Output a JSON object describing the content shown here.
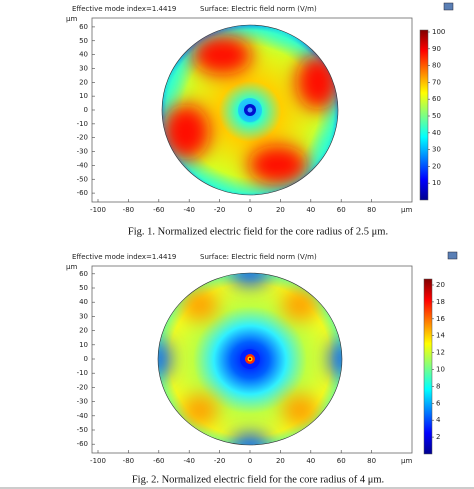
{
  "figures": [
    {
      "header": {
        "mode_index": "Effective mode index=1.4419",
        "surface": "Surface: Electric field norm (V/m)"
      },
      "y_unit": "μm",
      "x_unit": "μm",
      "yticks": [
        60,
        50,
        40,
        30,
        20,
        10,
        0,
        -10,
        -20,
        -30,
        -40,
        -50,
        -60
      ],
      "xticks": [
        -100,
        -80,
        -60,
        -40,
        -20,
        0,
        20,
        40,
        60,
        80
      ],
      "colorbar_ticks": [
        100,
        90,
        80,
        70,
        60,
        50,
        40,
        30,
        20,
        10
      ],
      "caption": "Fig. 1. Normalized electric field for the core radius of 2.5 μm."
    },
    {
      "header": {
        "mode_index": "Effective mode index=1.4419",
        "surface": "Surface: Electric field norm (V/m)"
      },
      "y_unit": "μm",
      "x_unit": "μm",
      "yticks": [
        60,
        50,
        40,
        30,
        20,
        10,
        0,
        -10,
        -20,
        -30,
        -40,
        -50,
        -60
      ],
      "xticks": [
        -100,
        -80,
        -60,
        -40,
        -20,
        0,
        20,
        40,
        60,
        80
      ],
      "colorbar_ticks": [
        20,
        18,
        16,
        14,
        12,
        10,
        8,
        6,
        4,
        2
      ],
      "caption": "Fig. 2.  Normalized electric field for the core radius of 4 μm."
    }
  ]
}
